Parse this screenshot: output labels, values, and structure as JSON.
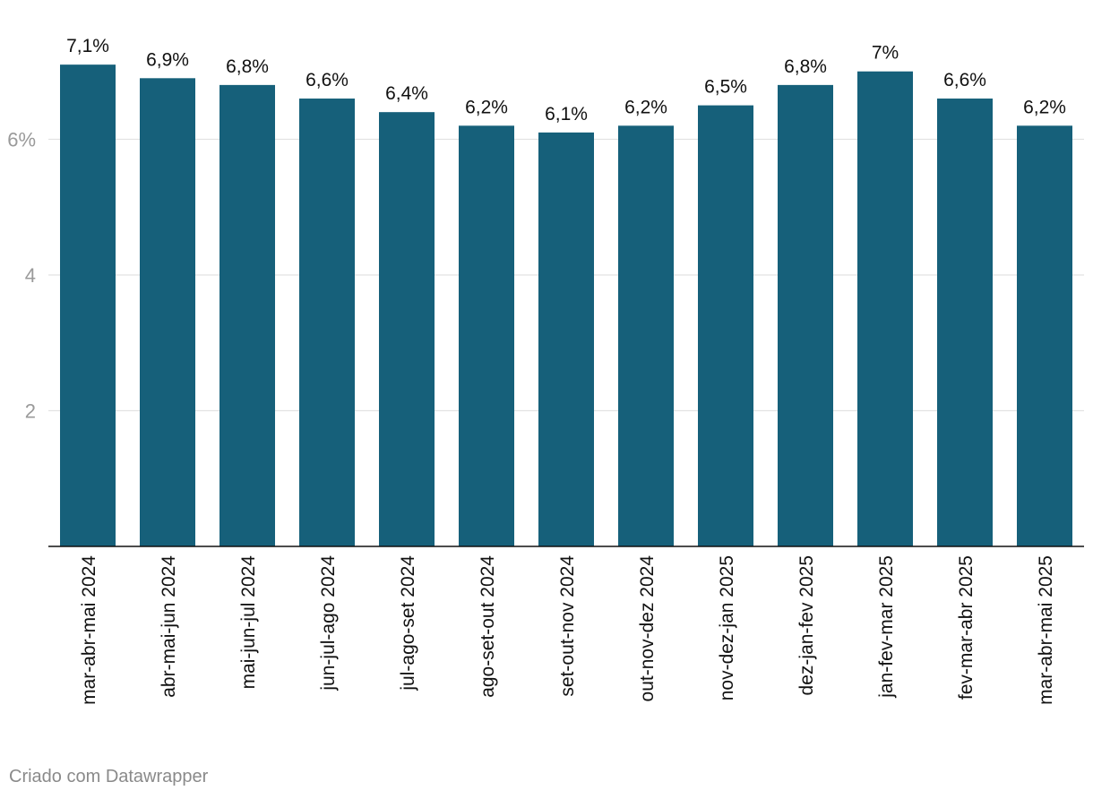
{
  "chart_data": {
    "type": "bar",
    "categories": [
      "mar-abr-mai 2024",
      "abr-mai-jun 2024",
      "mai-jun-jul 2024",
      "jun-jul-ago 2024",
      "jul-ago-set 2024",
      "ago-set-out 2024",
      "set-out-nov 2024",
      "out-nov-dez 2024",
      "nov-dez-jan 2025",
      "dez-jan-fev 2025",
      "jan-fev-mar 2025",
      "fev-mar-abr 2025",
      "mar-abr-mai 2025"
    ],
    "values": [
      7.1,
      6.9,
      6.8,
      6.6,
      6.4,
      6.2,
      6.1,
      6.2,
      6.5,
      6.8,
      7.0,
      6.6,
      6.2
    ],
    "data_labels": [
      "7,1%",
      "6,9%",
      "6,8%",
      "6,6%",
      "6,4%",
      "6,2%",
      "6,1%",
      "6,2%",
      "6,5%",
      "6,8%",
      "7%",
      "6,6%",
      "6,2%"
    ],
    "yticks": [
      2,
      4,
      6
    ],
    "ytick_labels": [
      "2",
      "4",
      "6%"
    ],
    "ylim": [
      0,
      7.3
    ],
    "grid": true,
    "bar_color": "#16607a",
    "title": "",
    "xlabel": "",
    "ylabel": ""
  },
  "footer": {
    "credit": "Criado com Datawrapper"
  }
}
